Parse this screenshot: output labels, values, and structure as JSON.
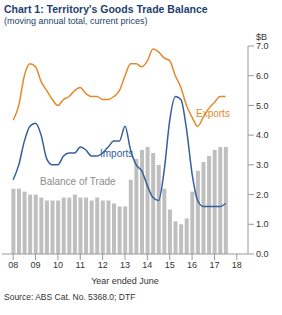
{
  "chart_data": {
    "type": "line",
    "title": "Chart 1: Territory's Goods Trade Balance",
    "subtitle": "(moving annual total, current prices)",
    "y_label": "$B",
    "x_label": "Year ended June",
    "source": "Source: ABS Cat. No. 5368.0; DTF",
    "x": [
      2008,
      2008.25,
      2008.5,
      2008.75,
      2009,
      2009.25,
      2009.5,
      2009.75,
      2010,
      2010.25,
      2010.5,
      2010.75,
      2011,
      2011.25,
      2011.5,
      2011.75,
      2012,
      2012.25,
      2012.5,
      2012.75,
      2013,
      2013.25,
      2013.5,
      2013.75,
      2014,
      2014.25,
      2014.5,
      2014.75,
      2015,
      2015.25,
      2015.5,
      2015.75,
      2016,
      2016.25,
      2016.5,
      2016.75,
      2017,
      2017.25,
      2017.5
    ],
    "series": [
      {
        "name": "Exports",
        "type": "line",
        "color": "#e3892d",
        "values": [
          4.5,
          5.0,
          6.0,
          6.4,
          6.3,
          5.8,
          5.5,
          5.2,
          5.0,
          5.2,
          5.3,
          5.5,
          5.6,
          5.4,
          5.3,
          5.3,
          5.2,
          5.2,
          5.3,
          5.5,
          6.0,
          6.4,
          6.4,
          6.3,
          6.5,
          6.9,
          6.8,
          6.6,
          6.5,
          6.0,
          5.6,
          5.0,
          4.6,
          4.3,
          4.6,
          4.9,
          5.1,
          5.3,
          5.3
        ]
      },
      {
        "name": "Imports",
        "type": "line",
        "color": "#34609a",
        "values": [
          2.5,
          3.0,
          3.8,
          4.3,
          4.4,
          4.0,
          3.2,
          3.0,
          3.0,
          3.3,
          3.4,
          3.4,
          3.6,
          3.5,
          3.3,
          3.3,
          3.4,
          3.6,
          3.8,
          3.8,
          4.3,
          3.5,
          3.0,
          2.8,
          2.3,
          1.9,
          1.8,
          2.8,
          4.5,
          5.3,
          5.2,
          4.2,
          2.7,
          1.8,
          1.6,
          1.6,
          1.6,
          1.6,
          1.7
        ]
      },
      {
        "name": "Balance of Trade",
        "type": "bar",
        "color": "#bfbfbf",
        "values": [
          2.2,
          2.2,
          2.1,
          2.0,
          2.0,
          1.9,
          1.8,
          1.8,
          1.8,
          1.9,
          1.9,
          2.0,
          1.9,
          1.9,
          1.8,
          1.9,
          1.8,
          1.8,
          1.7,
          1.6,
          1.6,
          2.5,
          3.2,
          3.5,
          3.6,
          3.4,
          3.0,
          2.2,
          1.5,
          1.1,
          1.0,
          1.2,
          2.1,
          2.8,
          3.1,
          3.3,
          3.5,
          3.6,
          3.6
        ]
      }
    ],
    "xlim": [
      2007.5,
      2018.5
    ],
    "xticks": [
      {
        "value": 2008,
        "label": "08"
      },
      {
        "value": 2009,
        "label": "09"
      },
      {
        "value": 2010,
        "label": "10"
      },
      {
        "value": 2011,
        "label": "11"
      },
      {
        "value": 2012,
        "label": "12"
      },
      {
        "value": 2013,
        "label": "13"
      },
      {
        "value": 2014,
        "label": "14"
      },
      {
        "value": 2015,
        "label": "15"
      },
      {
        "value": 2016,
        "label": "16"
      },
      {
        "value": 2017,
        "label": "17"
      },
      {
        "value": 2018,
        "label": "18"
      }
    ],
    "ylim": [
      0,
      7
    ],
    "yticks": [
      {
        "value": 0,
        "label": "0.0"
      },
      {
        "value": 1,
        "label": "1.0"
      },
      {
        "value": 2,
        "label": "2.0"
      },
      {
        "value": 3,
        "label": "3.0"
      },
      {
        "value": 4,
        "label": "4.0"
      },
      {
        "value": 5,
        "label": "5.0"
      },
      {
        "value": 6,
        "label": "6.0"
      },
      {
        "value": 7,
        "label": "7.0"
      }
    ],
    "grid": false
  }
}
